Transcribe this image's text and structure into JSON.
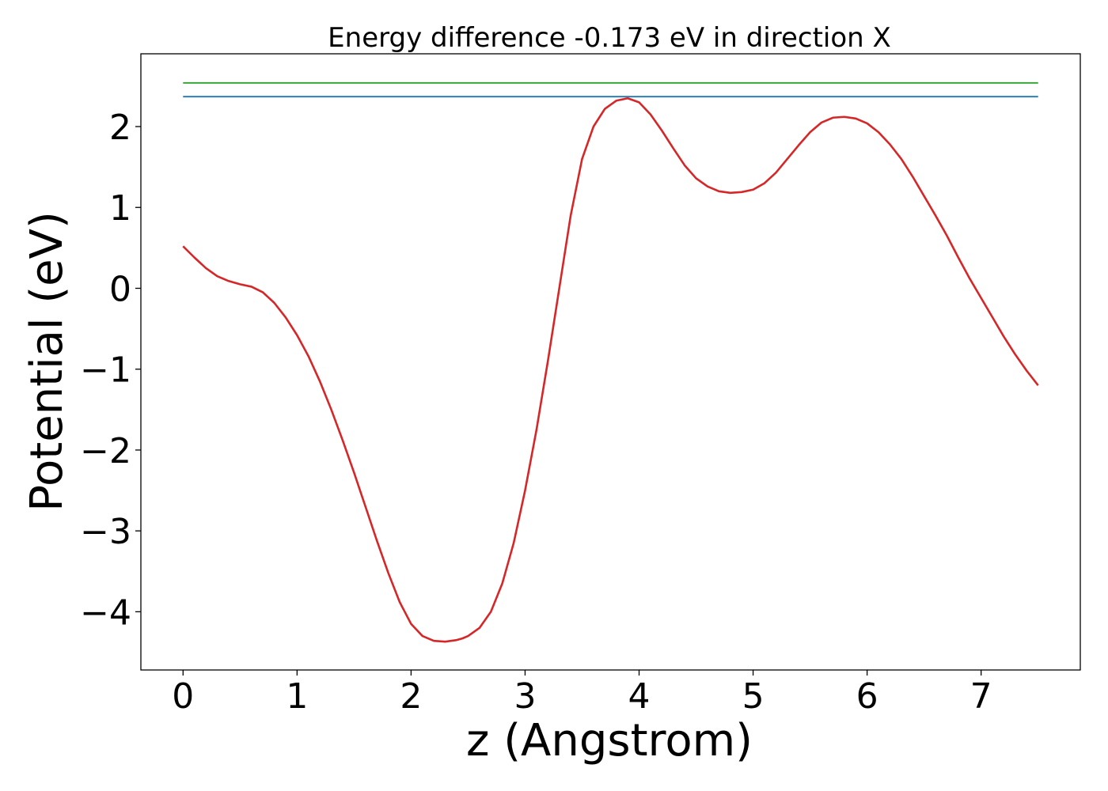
{
  "chart_data": {
    "type": "line",
    "title": "Energy difference -0.173 eV in direction X",
    "xlabel": "z (Angstrom)",
    "ylabel": "Potential (eV)",
    "xlim": [
      -0.37,
      7.87
    ],
    "ylim": [
      -4.72,
      2.9
    ],
    "xticks": [
      0,
      1,
      2,
      3,
      4,
      5,
      6,
      7
    ],
    "xtick_labels": [
      "0",
      "1",
      "2",
      "3",
      "4",
      "5",
      "6",
      "7"
    ],
    "yticks": [
      -4,
      -3,
      -2,
      -1,
      0,
      1,
      2
    ],
    "ytick_labels": [
      "−4",
      "−3",
      "−2",
      "−1",
      "0",
      "1",
      "2"
    ],
    "grid": false,
    "series": [
      {
        "color": "#d62728",
        "x": [
          0,
          0.1,
          0.2,
          0.3,
          0.4,
          0.5,
          0.6,
          0.7,
          0.8,
          0.9,
          1.0,
          1.1,
          1.2,
          1.3,
          1.4,
          1.5,
          1.6,
          1.7,
          1.8,
          1.9,
          2.0,
          2.1,
          2.2,
          2.3,
          2.4,
          2.45,
          2.5,
          2.6,
          2.7,
          2.8,
          2.9,
          3.0,
          3.1,
          3.2,
          3.3,
          3.4,
          3.5,
          3.6,
          3.7,
          3.8,
          3.9,
          4.0,
          4.1,
          4.2,
          4.3,
          4.4,
          4.5,
          4.6,
          4.7,
          4.8,
          4.9,
          5.0,
          5.1,
          5.2,
          5.3,
          5.4,
          5.5,
          5.6,
          5.7,
          5.8,
          5.9,
          6.0,
          6.1,
          6.2,
          6.3,
          6.4,
          6.5,
          6.6,
          6.7,
          6.8,
          6.9,
          7.0,
          7.1,
          7.2,
          7.3,
          7.4,
          7.5
        ],
        "y": [
          0.52,
          0.38,
          0.25,
          0.15,
          0.09,
          0.05,
          0.02,
          -0.05,
          -0.18,
          -0.36,
          -0.58,
          -0.84,
          -1.15,
          -1.5,
          -1.88,
          -2.28,
          -2.7,
          -3.12,
          -3.52,
          -3.88,
          -4.15,
          -4.3,
          -4.36,
          -4.37,
          -4.35,
          -4.33,
          -4.3,
          -4.2,
          -4.0,
          -3.65,
          -3.15,
          -2.5,
          -1.75,
          -0.9,
          0.0,
          0.9,
          1.6,
          2.0,
          2.22,
          2.32,
          2.35,
          2.3,
          2.15,
          1.95,
          1.73,
          1.52,
          1.36,
          1.26,
          1.2,
          1.18,
          1.19,
          1.22,
          1.3,
          1.43,
          1.6,
          1.77,
          1.93,
          2.05,
          2.11,
          2.12,
          2.1,
          2.04,
          1.93,
          1.78,
          1.6,
          1.38,
          1.14,
          0.9,
          0.65,
          0.38,
          0.12,
          -0.12,
          -0.36,
          -0.6,
          -0.82,
          -1.02,
          -1.2
        ]
      },
      {
        "color": "#1f77b4",
        "x": [
          0,
          7.5
        ],
        "y": [
          2.37,
          2.37
        ]
      },
      {
        "color": "#2ca02c",
        "x": [
          0,
          7.5
        ],
        "y": [
          2.54,
          2.54
        ]
      }
    ]
  }
}
